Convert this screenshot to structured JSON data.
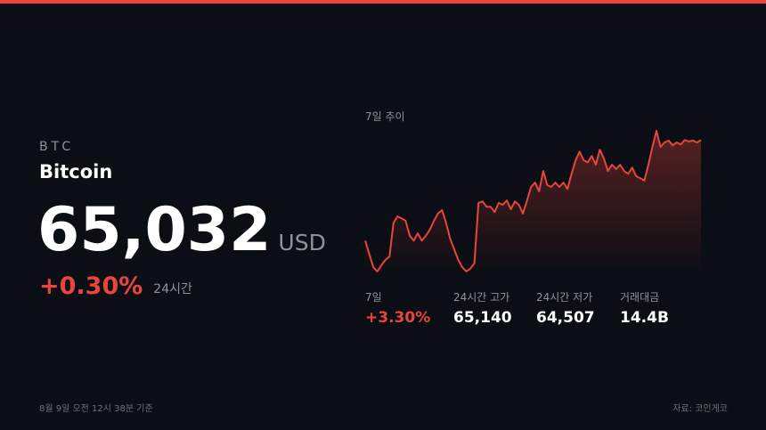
{
  "coin": {
    "symbol": "BTC",
    "name": "Bitcoin",
    "price": "65,032",
    "currency": "USD",
    "change": "+0.30%",
    "change_period": "24시간"
  },
  "chart_data": {
    "type": "line",
    "title": "7일 추이",
    "color": "#e8453c",
    "values": [
      62950,
      62680,
      62400,
      62310,
      62440,
      62550,
      62620,
      63320,
      63450,
      63410,
      63360,
      63050,
      62950,
      63100,
      62950,
      63050,
      63180,
      63360,
      63510,
      63580,
      63320,
      62990,
      62770,
      62550,
      62400,
      62310,
      62370,
      62480,
      63730,
      63760,
      63650,
      63650,
      63540,
      63730,
      63690,
      63780,
      63600,
      63760,
      63690,
      63510,
      63780,
      64060,
      64150,
      63970,
      64390,
      64100,
      64060,
      64150,
      64060,
      64150,
      64020,
      64330,
      64610,
      64790,
      64610,
      64570,
      64700,
      64520,
      64830,
      64650,
      64390,
      64520,
      64430,
      64520,
      64390,
      64330,
      64460,
      64280,
      64240,
      64190,
      64520,
      64890,
      65220,
      64890,
      64980,
      65020,
      64920,
      64980,
      64940,
      65030,
      65000,
      65020,
      64980,
      65030
    ]
  },
  "stats": [
    {
      "label": "7일",
      "value": "+3.30%"
    },
    {
      "label": "24시간 고가",
      "value": "65,140"
    },
    {
      "label": "24시간 저가",
      "value": "64,507"
    },
    {
      "label": "거래대금",
      "value": "14.4B"
    }
  ],
  "footer": {
    "timestamp": "8월 9일 오전 12시 38분 기준",
    "source": "자료: 코인게코"
  }
}
